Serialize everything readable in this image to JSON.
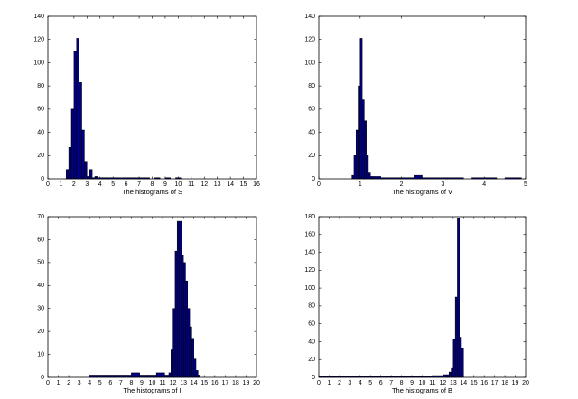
{
  "chart_data": [
    {
      "type": "histogram",
      "xlabel": "The histograms of S",
      "color": "#000080",
      "bins": [
        1.4,
        1.6,
        1.8,
        2.0,
        2.2,
        2.4,
        2.6,
        2.8,
        3.0,
        3.2,
        3.4,
        3.6,
        3.8,
        4.2,
        4.6,
        5.0,
        5.4,
        5.8,
        6.2,
        6.6,
        7.0,
        7.4,
        7.8,
        8.2,
        8.6,
        9.0,
        9.4,
        9.8,
        10.2
      ],
      "counts": [
        8,
        27,
        60,
        110,
        121,
        83,
        42,
        15,
        2,
        8,
        1,
        2,
        1,
        1,
        1,
        1,
        1,
        1,
        1,
        1,
        1,
        1,
        0,
        1,
        0,
        1,
        0,
        1
      ],
      "xlim": [
        0,
        16
      ],
      "xticks": [
        0,
        1,
        2,
        3,
        4,
        5,
        6,
        7,
        8,
        9,
        10,
        11,
        12,
        13,
        14,
        15,
        16
      ],
      "ylim": [
        0,
        140
      ],
      "yticks": [
        0,
        20,
        40,
        60,
        80,
        100,
        120,
        140
      ]
    },
    {
      "type": "histogram",
      "xlabel": "The histograms of V",
      "color": "#000080",
      "bins": [
        0.8,
        0.85,
        0.9,
        0.95,
        1.0,
        1.05,
        1.1,
        1.15,
        1.2,
        1.25,
        1.3,
        1.5,
        1.7,
        1.9,
        2.1,
        2.3,
        2.5,
        2.7,
        2.9,
        3.1,
        3.3,
        3.5,
        3.7,
        3.9,
        4.1,
        4.3,
        4.5,
        4.7,
        4.9
      ],
      "counts": [
        3,
        20,
        42,
        80,
        121,
        68,
        50,
        20,
        5,
        2,
        2,
        1,
        1,
        1,
        1,
        3,
        1,
        1,
        1,
        1,
        1,
        0,
        1,
        1,
        1,
        0,
        1,
        1
      ],
      "xlim": [
        0,
        5
      ],
      "xticks": [
        0,
        1,
        2,
        3,
        4,
        5
      ],
      "ylim": [
        0,
        140
      ],
      "yticks": [
        0,
        20,
        40,
        60,
        80,
        100,
        120,
        140
      ]
    },
    {
      "type": "histogram",
      "xlabel": "The histograms of I",
      "color": "#000080",
      "bins": [
        4.0,
        4.8,
        5.6,
        6.4,
        7.2,
        8.0,
        8.8,
        9.6,
        10.4,
        11.2,
        11.6,
        11.8,
        12.0,
        12.2,
        12.4,
        12.6,
        12.8,
        13.0,
        13.2,
        13.4,
        13.6,
        13.8,
        14.0,
        14.2,
        14.4,
        14.6
      ],
      "counts": [
        1,
        1,
        1,
        1,
        1,
        2,
        1,
        1,
        2,
        1,
        2,
        12,
        30,
        55,
        68,
        68,
        53,
        50,
        42,
        30,
        22,
        17,
        8,
        3,
        1
      ],
      "xlim": [
        0,
        20
      ],
      "xticks": [
        0,
        1,
        2,
        3,
        4,
        5,
        6,
        7,
        8,
        9,
        10,
        11,
        12,
        13,
        14,
        15,
        16,
        17,
        18,
        19,
        20
      ],
      "ylim": [
        0,
        70
      ],
      "yticks": [
        0,
        10,
        20,
        30,
        40,
        50,
        60,
        70
      ]
    },
    {
      "type": "histogram",
      "xlabel": "The histograms of B",
      "color": "#000080",
      "bins": [
        0,
        2,
        4,
        6,
        8,
        10,
        11,
        12,
        12.4,
        12.6,
        12.8,
        13.0,
        13.2,
        13.4,
        13.6,
        13.8,
        14.0
      ],
      "counts": [
        1,
        1,
        1,
        1,
        1,
        1,
        2,
        3,
        3,
        6,
        10,
        43,
        90,
        178,
        45,
        33
      ],
      "xlim": [
        0,
        20
      ],
      "xticks": [
        0,
        1,
        2,
        3,
        4,
        5,
        6,
        7,
        8,
        9,
        10,
        11,
        12,
        13,
        14,
        15,
        16,
        17,
        18,
        19,
        20
      ],
      "ylim": [
        0,
        180
      ],
      "yticks": [
        0,
        20,
        40,
        60,
        80,
        100,
        120,
        140,
        160,
        180
      ]
    }
  ]
}
